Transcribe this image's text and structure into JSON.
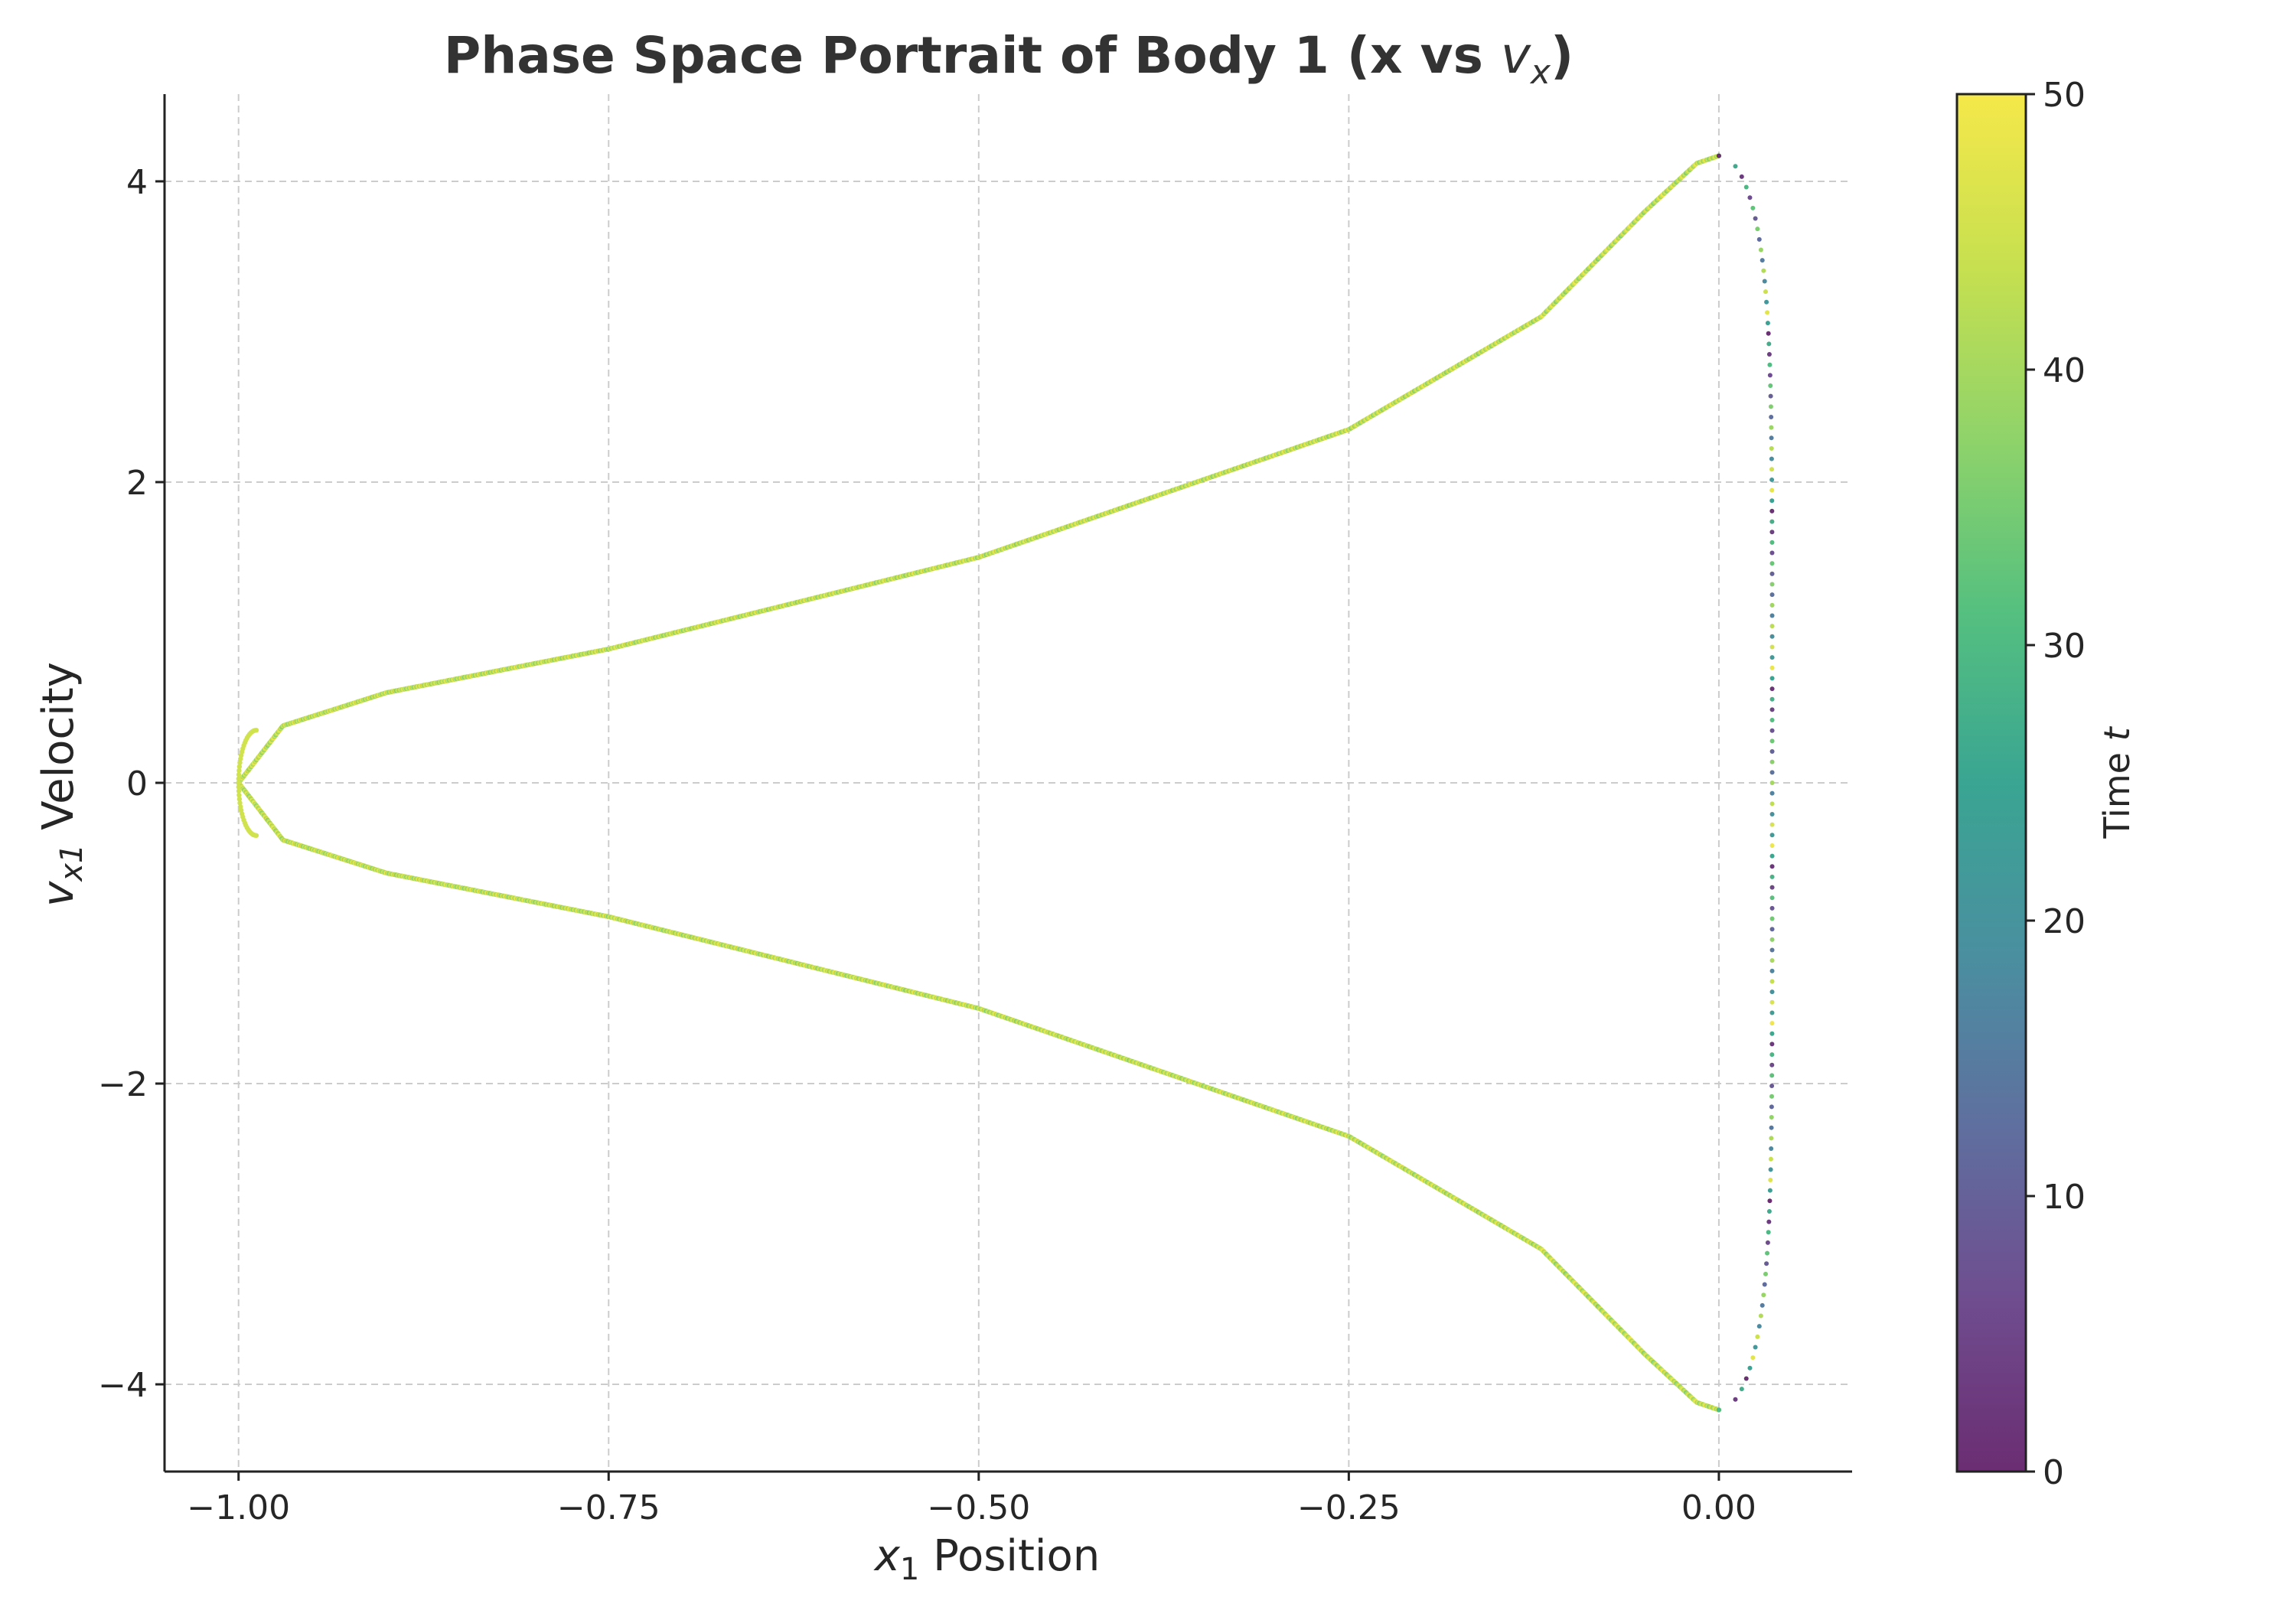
{
  "chart_data": {
    "type": "scatter",
    "title": "Phase Space Portrait of Body 1 (x vs v_x)",
    "title_parts": {
      "main": "Phase Space Portrait of Body 1 (x vs ",
      "var": "v",
      "sub": "x",
      "close": ")"
    },
    "xlabel": "x_1 Position",
    "xlabel_parts": {
      "var": "x",
      "sub": "1",
      "rest": " Position"
    },
    "ylabel": "v_x1 Velocity",
    "ylabel_parts": {
      "var": "v",
      "sub": "x1",
      "rest": " Velocity"
    },
    "xlim": [
      -1.05,
      0.09
    ],
    "ylim": [
      -4.58,
      4.58
    ],
    "xticks": [
      -1.0,
      -0.75,
      -0.5,
      -0.25,
      0.0
    ],
    "xtick_labels": [
      "−1.00",
      "−0.75",
      "−0.50",
      "−0.25",
      "0.00"
    ],
    "yticks": [
      -4,
      -2,
      0,
      2,
      4
    ],
    "ytick_labels": [
      "−4",
      "−2",
      "0",
      "2",
      "4"
    ],
    "grid": true,
    "curve": {
      "description_points": [
        {
          "x": -1.0,
          "y": 0.0
        },
        {
          "x": -0.75,
          "y": 0.89
        },
        {
          "x": -0.5,
          "y": 1.5
        },
        {
          "x": -0.25,
          "y": 2.35
        },
        {
          "x": 0.0,
          "y": 4.17
        },
        {
          "x": 0.035,
          "y": 0.0
        },
        {
          "x": 0.0,
          "y": -4.17
        },
        {
          "x": -0.25,
          "y": -2.35
        },
        {
          "x": -0.5,
          "y": -1.5
        },
        {
          "x": -0.75,
          "y": -0.89
        }
      ],
      "x_left": -1.0,
      "x_peak": 0.0,
      "x_right": 0.036,
      "v_peak": 4.17
    },
    "colorbar": {
      "label": "Time t",
      "label_parts": {
        "text": "Time ",
        "var": "t"
      },
      "range": [
        0,
        50
      ],
      "ticks": [
        0,
        10,
        20,
        30,
        40,
        50
      ],
      "tick_labels": [
        "0",
        "10",
        "20",
        "30",
        "40",
        "50"
      ],
      "colormap": "viridis",
      "colors": [
        "#6b2d72",
        "#6f4d8f",
        "#5f6f9f",
        "#4a8fa0",
        "#3aa592",
        "#55c07f",
        "#8fd36a",
        "#c7e04f",
        "#f5e84a"
      ]
    }
  }
}
